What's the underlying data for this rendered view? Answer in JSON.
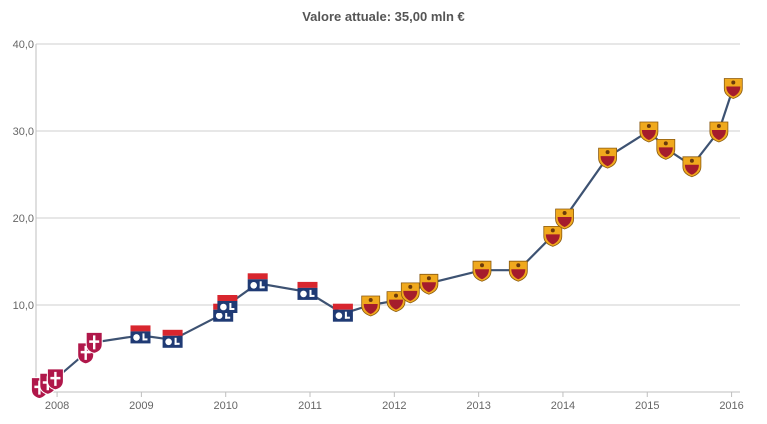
{
  "chart_data": {
    "type": "line",
    "title": "Valore attuale: 35,00 mln €",
    "xlabel": "",
    "ylabel": "",
    "ylim": [
      0,
      40
    ],
    "xlim": [
      2007.75,
      2016.1
    ],
    "yticks": [
      "40,0",
      "30,0",
      "20,0",
      "10,0"
    ],
    "yticks_values": [
      40,
      30,
      20,
      10
    ],
    "xticks": [
      "2008",
      "2009",
      "2010",
      "2011",
      "2012",
      "2013",
      "2014",
      "2015",
      "2016"
    ],
    "xticks_values": [
      2008,
      2009,
      2010,
      2011,
      2012,
      2013,
      2014,
      2015,
      2016
    ],
    "grid": true,
    "line_color": "#3d5272",
    "series": [
      {
        "values": [
          {
            "x": 2007.79,
            "y": 0.5,
            "club": "Metz"
          },
          {
            "x": 2007.89,
            "y": 1.0,
            "club": "Metz"
          },
          {
            "x": 2007.98,
            "y": 1.5,
            "club": "Metz"
          },
          {
            "x": 2008.34,
            "y": 4.5,
            "club": "Metz"
          },
          {
            "x": 2008.44,
            "y": 5.7,
            "club": "Metz"
          },
          {
            "x": 2008.99,
            "y": 6.5,
            "club": "Lyon"
          },
          {
            "x": 2009.37,
            "y": 6.0,
            "club": "Lyon"
          },
          {
            "x": 2009.97,
            "y": 9.0,
            "club": "Lyon"
          },
          {
            "x": 2010.02,
            "y": 10.0,
            "club": "Lyon"
          },
          {
            "x": 2010.38,
            "y": 12.5,
            "club": "Lyon"
          },
          {
            "x": 2010.97,
            "y": 11.5,
            "club": "Lyon"
          },
          {
            "x": 2011.39,
            "y": 9.0,
            "club": "Lyon"
          },
          {
            "x": 2011.72,
            "y": 10.0,
            "club": "Roma"
          },
          {
            "x": 2012.02,
            "y": 10.5,
            "club": "Roma"
          },
          {
            "x": 2012.19,
            "y": 11.5,
            "club": "Roma"
          },
          {
            "x": 2012.41,
            "y": 12.5,
            "club": "Roma"
          },
          {
            "x": 2013.04,
            "y": 14.0,
            "club": "Roma"
          },
          {
            "x": 2013.47,
            "y": 14.0,
            "club": "Roma"
          },
          {
            "x": 2013.88,
            "y": 18.0,
            "club": "Roma"
          },
          {
            "x": 2014.02,
            "y": 20.0,
            "club": "Roma"
          },
          {
            "x": 2014.53,
            "y": 27.0,
            "club": "Roma"
          },
          {
            "x": 2015.02,
            "y": 30.0,
            "club": "Roma"
          },
          {
            "x": 2015.22,
            "y": 28.0,
            "club": "Roma"
          },
          {
            "x": 2015.53,
            "y": 26.0,
            "club": "Roma"
          },
          {
            "x": 2015.85,
            "y": 30.0,
            "club": "Roma"
          },
          {
            "x": 2016.02,
            "y": 35.0,
            "club": "Roma"
          }
        ]
      }
    ],
    "club_colors": {
      "Metz": "#b0174a",
      "Lyon": "#1f3a74",
      "Roma": "#a51c2c",
      "Roma_gold": "#f0a91d",
      "Lyon_red": "#d8262e"
    }
  }
}
